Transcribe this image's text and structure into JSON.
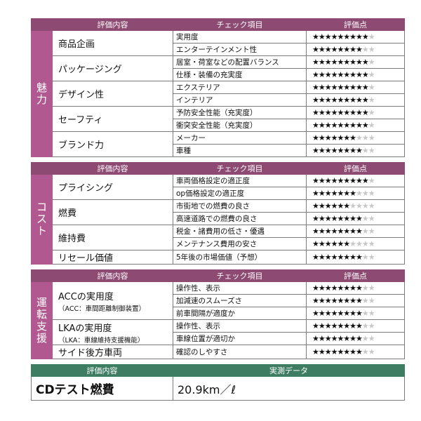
{
  "headers": {
    "eval": "評価内容",
    "check": "チェック項目",
    "score": "評価点"
  },
  "sections": [
    {
      "category": "魅力",
      "items": [
        {
          "name": "商品企画",
          "rows": [
            {
              "check": "実用度",
              "stars": 9
            },
            {
              "check": "エンターテインメント性",
              "stars": 8
            }
          ]
        },
        {
          "name": "パッケージング",
          "rows": [
            {
              "check": "居室・荷室などの配置バランス",
              "stars": 9
            },
            {
              "check": "仕様・装備の充実度",
              "stars": 9
            }
          ]
        },
        {
          "name": "デザイン性",
          "rows": [
            {
              "check": "エクステリア",
              "stars": 9
            },
            {
              "check": "インテリア",
              "stars": 9
            }
          ]
        },
        {
          "name": "セーフティ",
          "rows": [
            {
              "check": "予防安全性能（充実度）",
              "stars": 9
            },
            {
              "check": "衝突安全性能（充実度）",
              "stars": 9
            }
          ]
        },
        {
          "name": "ブランド力",
          "rows": [
            {
              "check": "メーカー",
              "stars": 7
            },
            {
              "check": "車種",
              "stars": 8
            }
          ]
        }
      ]
    },
    {
      "category": "コスト",
      "items": [
        {
          "name": "プライシング",
          "rows": [
            {
              "check": "車両価格設定の適正度",
              "stars": 9
            },
            {
              "check": "op価格設定の適正度",
              "stars": 7
            }
          ]
        },
        {
          "name": "燃費",
          "rows": [
            {
              "check": "市街地での燃費の良さ",
              "stars": 6
            },
            {
              "check": "高速道路での燃費の良さ",
              "stars": 8
            }
          ]
        },
        {
          "name": "維持費",
          "rows": [
            {
              "check": "税金・諸費用の低さ・優遇",
              "stars": 8
            },
            {
              "check": "メンテナンス費用の安さ",
              "stars": 6
            }
          ]
        },
        {
          "name": "リセール価値",
          "rows": [
            {
              "check": "5年後の市場価値（予想）",
              "stars": 8
            }
          ]
        }
      ]
    },
    {
      "category": "運転支援",
      "items": [
        {
          "name": "ACCの実用度",
          "sub": "（ACC：車間距離制御装置）",
          "rows": [
            {
              "check": "操作性、表示",
              "stars": 8
            },
            {
              "check": "加減速のスムーズさ",
              "stars": 8
            },
            {
              "check": "前車間隔が適度か",
              "stars": 8
            }
          ]
        },
        {
          "name": "LKAの実用度",
          "sub": "（LKA：車線維持支援機能）",
          "rows": [
            {
              "check": "操作性、表示",
              "stars": 8
            },
            {
              "check": "車線位置が適切か",
              "stars": 8
            }
          ]
        },
        {
          "name": "サイド後方車両",
          "rows": [
            {
              "check": "確認のしやすさ",
              "stars": 8
            }
          ]
        }
      ]
    }
  ],
  "max_stars": 10,
  "cd": {
    "eval_header": "評価内容",
    "value_header": "実測データ",
    "label": "CDテスト燃費",
    "value": "20.9km／ℓ"
  }
}
